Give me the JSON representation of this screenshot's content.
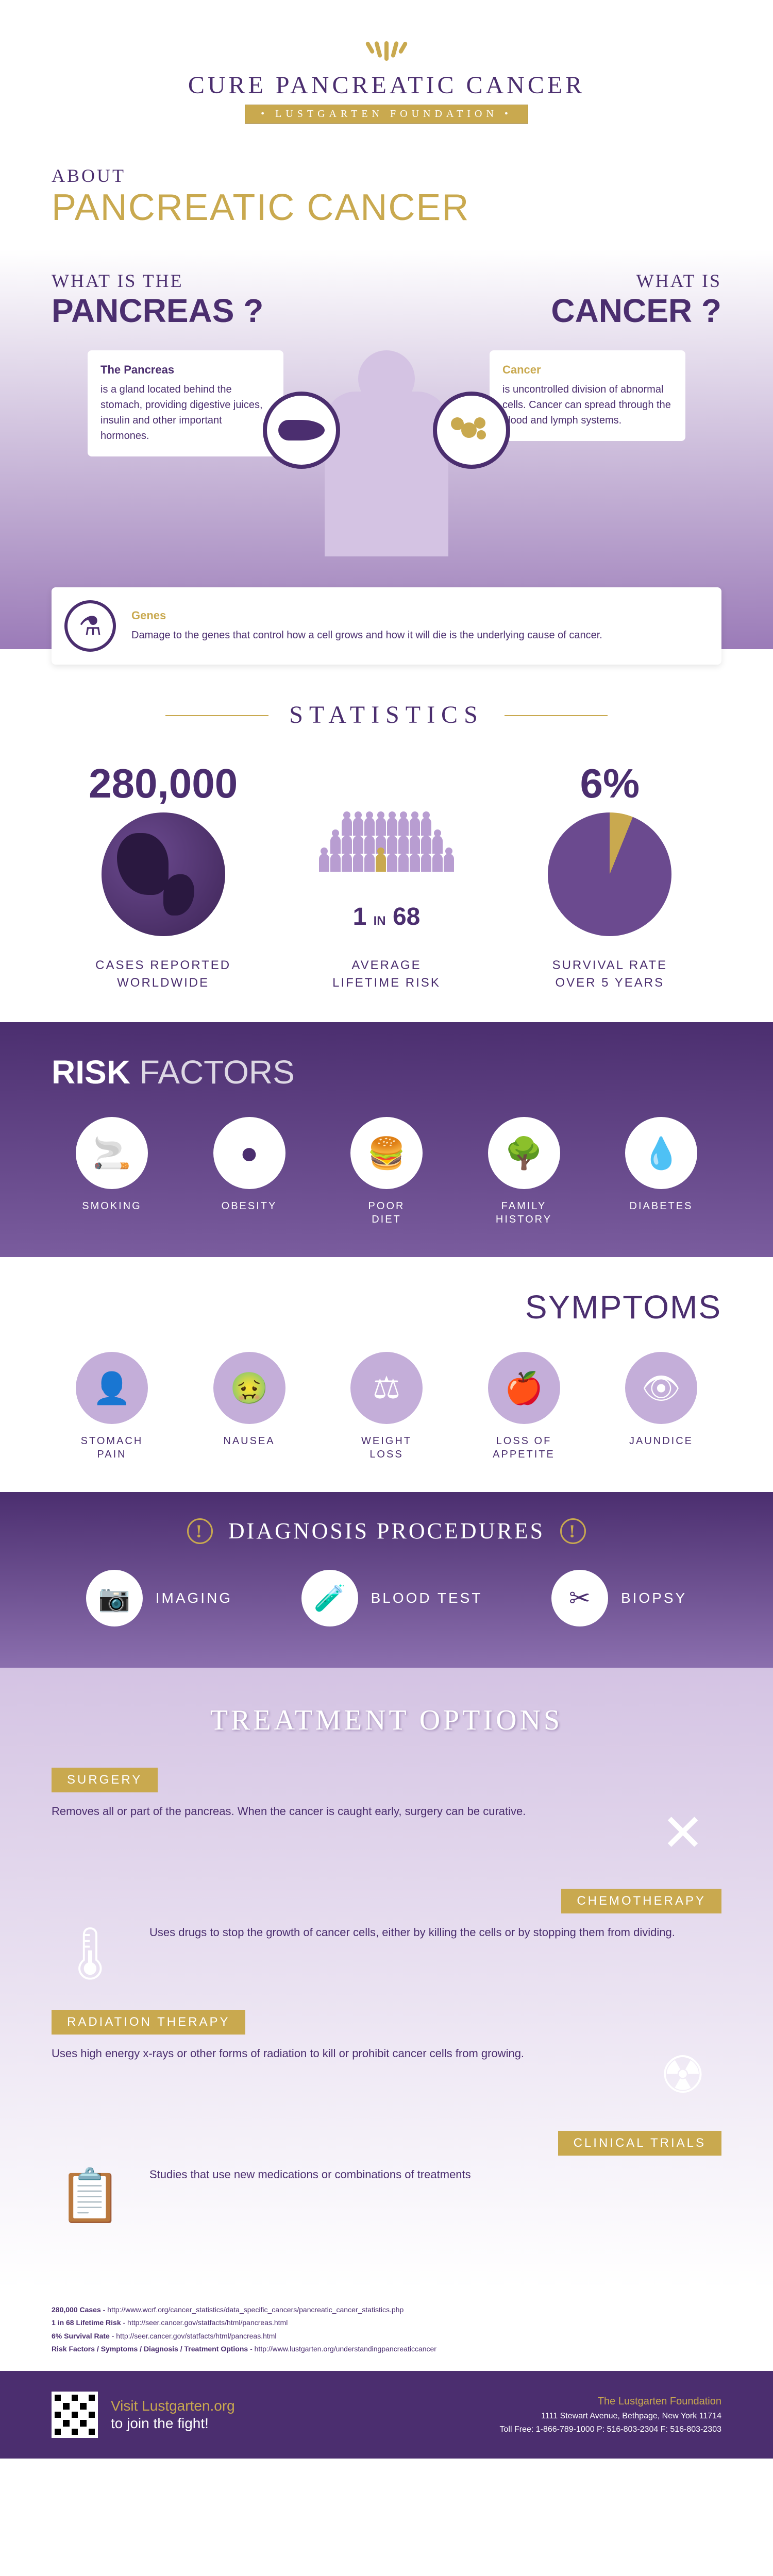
{
  "colors": {
    "primary": "#4b2e6f",
    "accent": "#c9a94f",
    "light_purple": "#c4aed9",
    "bg_gradient_start": "#4b2e6f",
    "bg_gradient_end": "#8b6fae"
  },
  "header": {
    "logo_title": "CURE PANCREATIC CANCER",
    "logo_subtitle": "• LUSTGARTEN FOUNDATION •"
  },
  "about": {
    "kicker": "ABOUT",
    "title": "PANCREATIC CANCER"
  },
  "whatis": {
    "left_kicker": "WHAT IS THE",
    "left_title": "PANCREAS ?",
    "right_kicker": "WHAT IS",
    "right_title": "CANCER ?",
    "pancreas_title": "The Pancreas",
    "pancreas_text": "is a gland located behind the stomach, providing digestive juices, insulin and other important hormones.",
    "cancer_title": "Cancer",
    "cancer_text": "is uncontrolled division of abnormal cells. Cancer can spread through the blood and lymph systems.",
    "genes_title": "Genes",
    "genes_text": "Damage to the genes that control how a cell grows and how it will die is the underlying cause of cancer."
  },
  "stats": {
    "title": "STATISTICS",
    "items": [
      {
        "value": "280,000",
        "label": "CASES REPORTED\nWORLDWIDE",
        "type": "globe"
      },
      {
        "value": "1 IN 68",
        "label": "AVERAGE\nLIFETIME RISK",
        "type": "crowd"
      },
      {
        "value": "6%",
        "label": "SURVIVAL RATE\nOVER 5 YEARS",
        "type": "pie",
        "pie_percentage": 6
      }
    ]
  },
  "risk": {
    "title_bold": "RISK",
    "title_light": "FACTORS",
    "items": [
      {
        "icon": "🚬",
        "label": "SMOKING"
      },
      {
        "icon": "●",
        "label": "OBESITY"
      },
      {
        "icon": "🍔",
        "label": "POOR\nDIET"
      },
      {
        "icon": "🌳",
        "label": "FAMILY\nHISTORY"
      },
      {
        "icon": "💧",
        "label": "DIABETES"
      }
    ]
  },
  "symptoms": {
    "title": "SYMPTOMS",
    "items": [
      {
        "icon": "👤",
        "label": "STOMACH\nPAIN"
      },
      {
        "icon": "🤢",
        "label": "NAUSEA"
      },
      {
        "icon": "⚖",
        "label": "WEIGHT\nLOSS"
      },
      {
        "icon": "🍎",
        "label": "LOSS OF\nAPPETITE"
      },
      {
        "icon": "👁",
        "label": "JAUNDICE"
      }
    ]
  },
  "diagnosis": {
    "title": "DIAGNOSIS PROCEDURES",
    "items": [
      {
        "icon": "📷",
        "label": "IMAGING"
      },
      {
        "icon": "🧪",
        "label": "BLOOD TEST"
      },
      {
        "icon": "✂",
        "label": "BIOPSY"
      }
    ]
  },
  "treatment": {
    "title": "TREATMENT OPTIONS",
    "blocks": [
      {
        "title": "SURGERY",
        "text": "Removes all or part of the pancreas. When the cancer is caught early, surgery can be curative.",
        "icon": "✕",
        "align": "left"
      },
      {
        "title": "CHEMOTHERAPY",
        "text": "Uses drugs to stop the growth of cancer cells, either by killing the cells or by stopping them from dividing.",
        "icon": "🌡",
        "align": "right"
      },
      {
        "title": "RADIATION THERAPY",
        "text": "Uses high energy x-rays or other forms of radiation to kill or prohibit cancer cells from growing.",
        "icon": "☢",
        "align": "left"
      },
      {
        "title": "CLINICAL TRIALS",
        "text": "Studies that use new medications or combinations of treatments",
        "icon": "📋",
        "align": "right"
      }
    ]
  },
  "sources": [
    {
      "label": "280,000 Cases",
      "url": "http://www.wcrf.org/cancer_statistics/data_specific_cancers/pancreatic_cancer_statistics.php"
    },
    {
      "label": "1 in 68 Lifetime Risk",
      "url": "http://seer.cancer.gov/statfacts/html/pancreas.html"
    },
    {
      "label": "6% Survival Rate",
      "url": "http://seer.cancer.gov/statfacts/html/pancreas.html"
    },
    {
      "label": "Risk Factors / Symptoms / Diagnosis / Treatment Options",
      "url": "http://www.lustgarten.org/understandingpancreaticcancer"
    }
  ],
  "footer": {
    "cta_line1": "Visit Lustgarten.org",
    "cta_line2": "to join the fight!",
    "foundation": "The Lustgarten Foundation",
    "address": "1111 Stewart Avenue, Bethpage, New York 11714",
    "contact": "Toll Free: 1-866-789-1000 P: 516-803-2304 F: 516-803-2303"
  }
}
